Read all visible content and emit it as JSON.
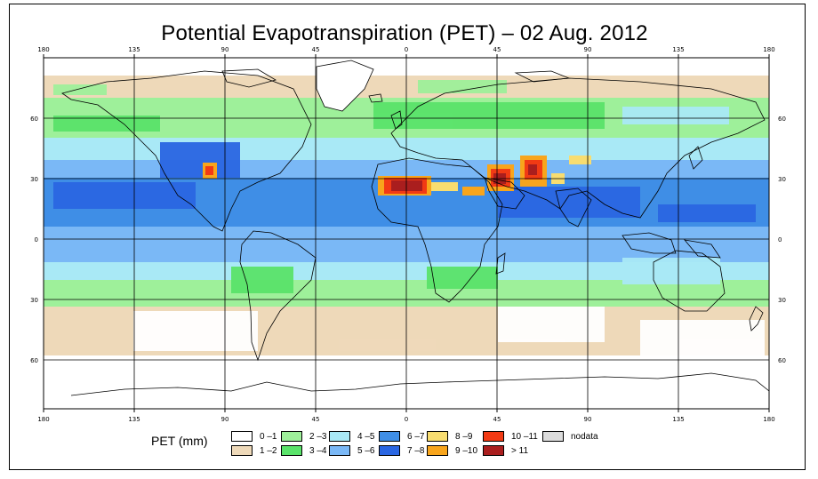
{
  "title": "Potential Evapotranspiration (PET) – 02 Aug. 2012",
  "x_tick_labels": [
    "180",
    "135",
    "90",
    "45",
    "0",
    "45",
    "90",
    "135",
    "180"
  ],
  "y_tick_labels": [
    "60",
    "30",
    "0",
    "30",
    "60"
  ],
  "legend": {
    "title": "PET (mm)",
    "items": [
      {
        "label": "0 –1",
        "color": "#ffffff"
      },
      {
        "label": "1 –2",
        "color": "#eed9b9"
      },
      {
        "label": "2 –3",
        "color": "#9ef09a"
      },
      {
        "label": "3 –4",
        "color": "#5ae36a"
      },
      {
        "label": "4 –5",
        "color": "#a9e9f6"
      },
      {
        "label": "5 –6",
        "color": "#7ab8f6"
      },
      {
        "label": "6 –7",
        "color": "#3f8ee6"
      },
      {
        "label": "7 –8",
        "color": "#2a66e2"
      },
      {
        "label": "8 –9",
        "color": "#f8dd70"
      },
      {
        "label": "9 –10",
        "color": "#f8a51c"
      },
      {
        "label": "10 –11",
        "color": "#f23a14"
      },
      {
        "label": "> 11",
        "color": "#aa1e1e"
      },
      {
        "label": "nodata",
        "color": "#dcdcdc"
      }
    ]
  }
}
